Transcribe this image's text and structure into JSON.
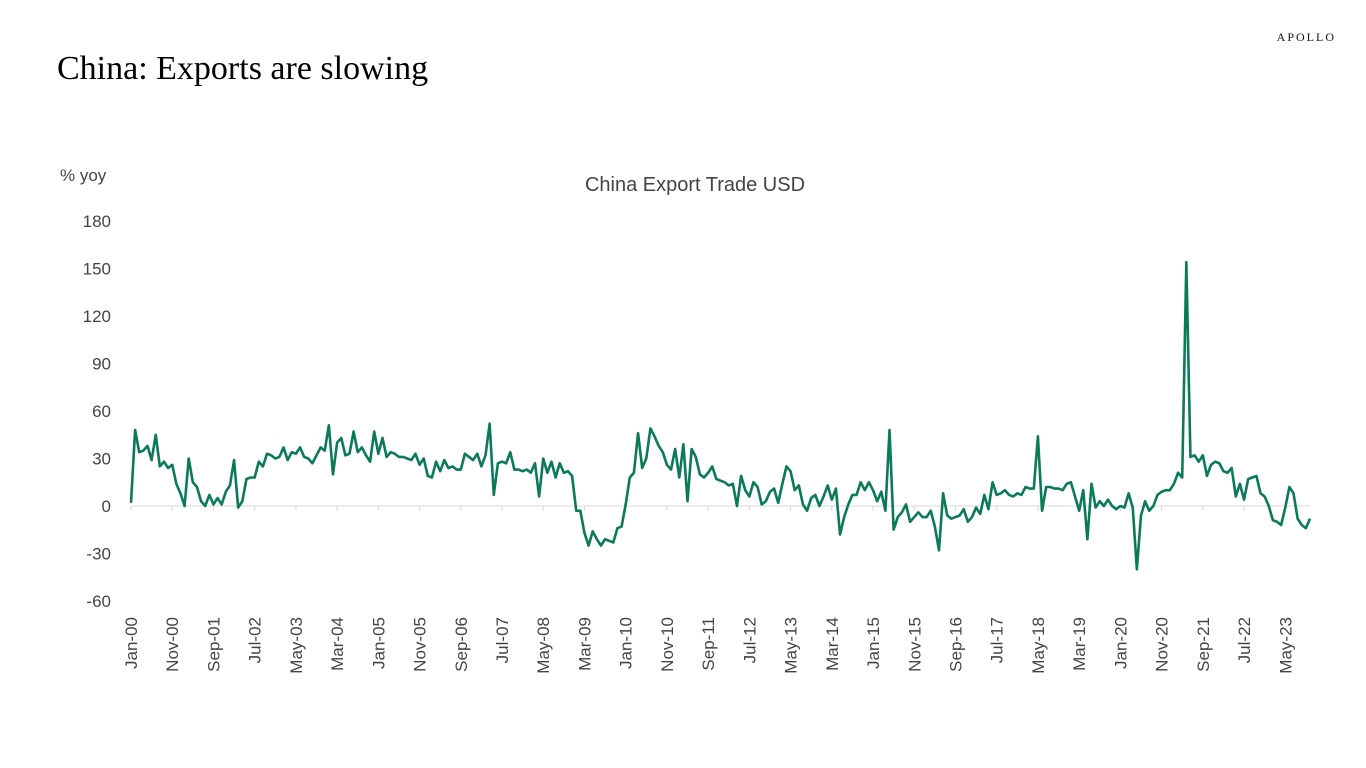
{
  "brand": "APOLLO",
  "headline": "China: Exports are slowing",
  "chart_data": {
    "type": "line",
    "title": "China Export Trade USD",
    "ylabel": "% yoy",
    "ylim": [
      -60,
      180
    ],
    "yticks": [
      -60,
      -30,
      0,
      30,
      60,
      90,
      120,
      150,
      180
    ],
    "xticks": [
      "Jan-00",
      "Nov-00",
      "Sep-01",
      "Jul-02",
      "May-03",
      "Mar-04",
      "Jan-05",
      "Nov-05",
      "Sep-06",
      "Jul-07",
      "May-08",
      "Mar-09",
      "Jan-10",
      "Nov-10",
      "Sep-11",
      "Jul-12",
      "May-13",
      "Mar-14",
      "Jan-15",
      "Nov-15",
      "Sep-16",
      "Jul-17",
      "May-18",
      "Mar-19",
      "Jan-20",
      "Nov-20",
      "Sep-21",
      "Jul-22",
      "May-23"
    ],
    "x_start": "Jan-00",
    "x_end": "Aug-23",
    "frequency": "monthly",
    "grid": false,
    "color": "#0a7a5a",
    "series": [
      {
        "values": [
          2,
          48,
          34,
          35,
          38,
          29,
          45,
          25,
          28,
          24,
          26,
          14,
          8,
          0,
          30,
          15,
          12,
          3,
          0,
          7,
          1,
          5,
          1,
          9,
          13,
          29,
          -1,
          3,
          17,
          18,
          18,
          28,
          25,
          33,
          32,
          30,
          31,
          37,
          29,
          34,
          33,
          37,
          31,
          30,
          27,
          32,
          37,
          35,
          51,
          20,
          40,
          43,
          32,
          33,
          47,
          34,
          37,
          32,
          28,
          47,
          33,
          43,
          31,
          34,
          33,
          31,
          31,
          30,
          29,
          33,
          26,
          30,
          19,
          18,
          28,
          22,
          29,
          24,
          25,
          23,
          23,
          33,
          31,
          29,
          33,
          25,
          32,
          52,
          7,
          27,
          28,
          27,
          34,
          23,
          23,
          22,
          23,
          21,
          27,
          6,
          30,
          21,
          28,
          18,
          27,
          21,
          22,
          19,
          -3,
          -3,
          -17,
          -25,
          -16,
          -21,
          -25,
          -21,
          -22,
          -23,
          -14,
          -13,
          1,
          18,
          21,
          46,
          24,
          30,
          49,
          44,
          38,
          34,
          26,
          23,
          36,
          18,
          39,
          3,
          36,
          31,
          20,
          18,
          21,
          25,
          17,
          16,
          15,
          13,
          14,
          0,
          19,
          10,
          6,
          15,
          12,
          1,
          3,
          9,
          11,
          2,
          14,
          25,
          22,
          10,
          13,
          1,
          -3,
          5,
          7,
          0,
          6,
          13,
          4,
          11,
          -18,
          -7,
          1,
          7,
          7,
          15,
          10,
          15,
          10,
          3,
          9,
          -3,
          48,
          -15,
          -7,
          -4,
          1,
          -10,
          -7,
          -4,
          -7,
          -7,
          -3,
          -13,
          -28,
          8,
          -6,
          -8,
          -7,
          -6,
          -2,
          -10,
          -7,
          -1,
          -5,
          7,
          -2,
          15,
          7,
          8,
          10,
          7,
          6,
          8,
          7,
          12,
          11,
          11,
          44,
          -3,
          12,
          12,
          11,
          11,
          10,
          14,
          15,
          6,
          -3,
          10,
          -21,
          14,
          -1,
          3,
          0,
          4,
          0,
          -2,
          0,
          -1,
          8,
          -1,
          -40,
          -6,
          3,
          -3,
          0,
          7,
          9,
          10,
          10,
          14,
          21,
          18,
          154,
          31,
          32,
          28,
          32,
          19,
          26,
          28,
          27,
          22,
          21,
          24,
          6,
          14,
          4,
          17,
          18,
          19,
          8,
          6,
          0,
          -9,
          -10,
          -12,
          -1,
          12,
          8,
          -8,
          -12,
          -14,
          -8
        ]
      }
    ]
  }
}
